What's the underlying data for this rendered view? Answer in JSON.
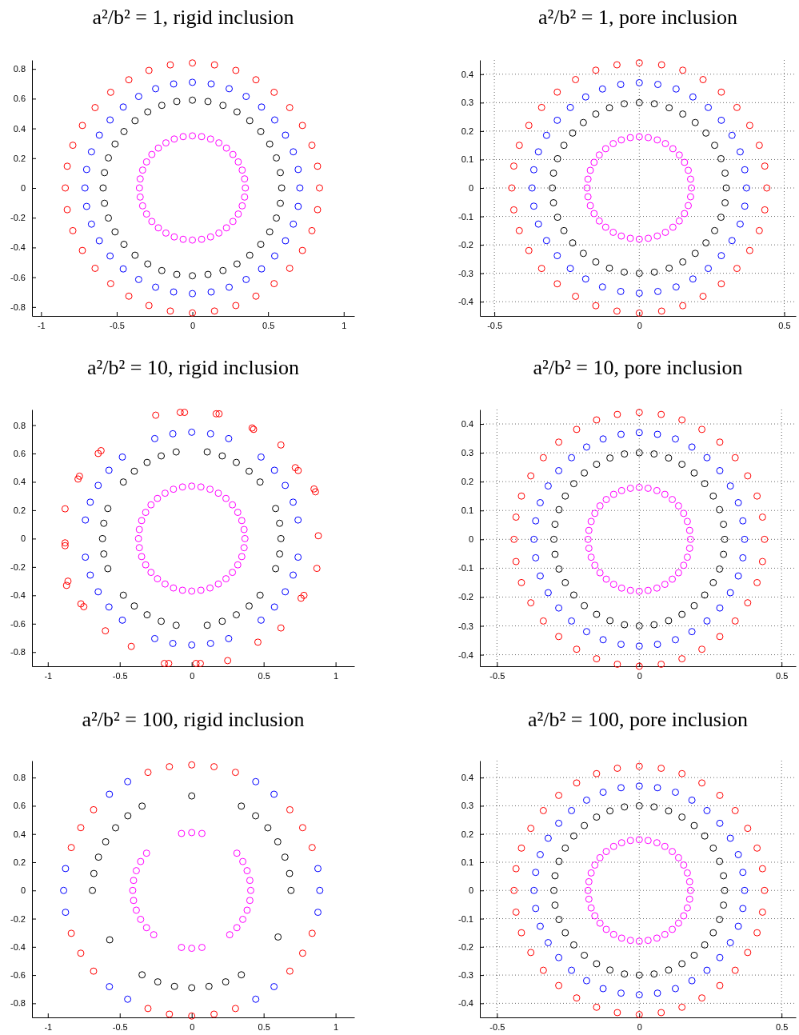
{
  "chart_data": [
    {
      "type": "scatter",
      "title": "a²/b² = 1, rigid inclusion",
      "marker": "circle",
      "grid": false,
      "xlim": [
        -1.06,
        1.07
      ],
      "ylim": [
        -0.86,
        0.86
      ],
      "xticks": [
        -1,
        -0.5,
        0,
        0.5,
        1
      ],
      "yticks": [
        -0.8,
        -0.6,
        -0.4,
        -0.2,
        0,
        0.2,
        0.4,
        0.6,
        0.8
      ],
      "series": [
        {
          "color": "#ff0000",
          "x": [
            0.84,
            0.827,
            0.79,
            0.727,
            0.643,
            0.54,
            0.42,
            0.287,
            0.146,
            0,
            -0.146,
            -0.287,
            -0.42,
            -0.54,
            -0.643,
            -0.727,
            -0.79,
            -0.827,
            -0.84,
            -0.827,
            -0.79,
            -0.727,
            -0.643,
            -0.54,
            -0.42,
            -0.287,
            -0.146,
            0,
            0.146,
            0.287,
            0.42,
            0.54,
            0.643,
            0.727,
            0.79,
            0.827
          ],
          "values": [
            0,
            0.146,
            0.287,
            0.42,
            0.54,
            0.643,
            0.727,
            0.79,
            0.827,
            0.84,
            0.827,
            0.79,
            0.727,
            0.643,
            0.54,
            0.42,
            0.287,
            0.146,
            0,
            -0.146,
            -0.287,
            -0.42,
            -0.54,
            -0.643,
            -0.727,
            -0.79,
            -0.827,
            -0.84,
            -0.827,
            -0.79,
            -0.727,
            -0.643,
            -0.54,
            -0.42,
            -0.287,
            -0.146
          ]
        },
        {
          "color": "#0000ff",
          "x": [
            0.71,
            0.699,
            0.667,
            0.615,
            0.544,
            0.457,
            0.355,
            0.243,
            0.124,
            0,
            -0.124,
            -0.243,
            -0.355,
            -0.457,
            -0.544,
            -0.615,
            -0.667,
            -0.699,
            -0.71,
            -0.699,
            -0.667,
            -0.615,
            -0.544,
            -0.457,
            -0.355,
            -0.243,
            -0.124,
            0,
            0.124,
            0.243,
            0.355,
            0.457,
            0.544,
            0.615,
            0.667,
            0.699
          ],
          "values": [
            0,
            0.124,
            0.243,
            0.355,
            0.457,
            0.544,
            0.615,
            0.667,
            0.699,
            0.71,
            0.699,
            0.667,
            0.615,
            0.544,
            0.457,
            0.355,
            0.243,
            0.124,
            0,
            -0.124,
            -0.243,
            -0.355,
            -0.457,
            -0.544,
            -0.615,
            -0.667,
            -0.699,
            -0.71,
            -0.699,
            -0.667,
            -0.615,
            -0.544,
            -0.457,
            -0.355,
            -0.243,
            -0.124
          ]
        },
        {
          "color": "#000000",
          "x": [
            0.59,
            0.581,
            0.555,
            0.511,
            0.452,
            0.379,
            0.295,
            0.202,
            0.103,
            0,
            -0.103,
            -0.202,
            -0.295,
            -0.379,
            -0.452,
            -0.511,
            -0.555,
            -0.581,
            -0.59,
            -0.581,
            -0.555,
            -0.511,
            -0.452,
            -0.379,
            -0.295,
            -0.202,
            -0.103,
            0,
            0.103,
            0.202,
            0.295,
            0.379,
            0.452,
            0.511,
            0.555,
            0.581
          ],
          "values": [
            0,
            0.103,
            0.202,
            0.295,
            0.379,
            0.452,
            0.511,
            0.555,
            0.581,
            0.59,
            0.581,
            0.555,
            0.511,
            0.452,
            0.379,
            0.295,
            0.202,
            0.103,
            0,
            -0.103,
            -0.202,
            -0.295,
            -0.379,
            -0.452,
            -0.511,
            -0.555,
            -0.581,
            -0.59,
            -0.581,
            -0.555,
            -0.511,
            -0.452,
            -0.379,
            -0.295,
            -0.202,
            -0.103
          ]
        },
        {
          "color": "#ff00ff",
          "x": [
            0.35,
            0.345,
            0.329,
            0.303,
            0.268,
            0.225,
            0.175,
            0.12,
            0.061,
            0,
            -0.061,
            -0.12,
            -0.175,
            -0.225,
            -0.268,
            -0.303,
            -0.329,
            -0.345,
            -0.35,
            -0.345,
            -0.329,
            -0.303,
            -0.268,
            -0.225,
            -0.175,
            -0.12,
            -0.061,
            0,
            0.061,
            0.12,
            0.175,
            0.225,
            0.268,
            0.303,
            0.329,
            0.345
          ],
          "values": [
            0,
            0.061,
            0.12,
            0.175,
            0.225,
            0.268,
            0.303,
            0.329,
            0.345,
            0.35,
            0.345,
            0.329,
            0.303,
            0.268,
            0.225,
            0.175,
            0.12,
            0.061,
            0,
            -0.061,
            -0.12,
            -0.175,
            -0.225,
            -0.268,
            -0.303,
            -0.329,
            -0.345,
            -0.35,
            -0.345,
            -0.329,
            -0.303,
            -0.268,
            -0.225,
            -0.175,
            -0.12,
            -0.061
          ]
        }
      ]
    },
    {
      "type": "scatter",
      "title": "a²/b² = 1, pore inclusion",
      "marker": "circle",
      "grid": true,
      "xlim": [
        -0.55,
        0.54
      ],
      "ylim": [
        -0.45,
        0.45
      ],
      "xticks": [
        -0.5,
        0,
        0.5
      ],
      "yticks": [
        -0.4,
        -0.3,
        -0.2,
        -0.1,
        0,
        0.1,
        0.2,
        0.3,
        0.4
      ],
      "series": [
        {
          "color": "#ff0000",
          "x": [
            0.44,
            0.433,
            0.414,
            0.381,
            0.337,
            0.283,
            0.22,
            0.15,
            0.077,
            0,
            -0.077,
            -0.15,
            -0.22,
            -0.283,
            -0.337,
            -0.381,
            -0.414,
            -0.433,
            -0.44,
            -0.433,
            -0.414,
            -0.381,
            -0.337,
            -0.283,
            -0.22,
            -0.15,
            -0.077,
            0,
            0.077,
            0.15,
            0.22,
            0.283,
            0.337,
            0.381,
            0.414,
            0.433
          ],
          "values": [
            0,
            0.077,
            0.15,
            0.22,
            0.283,
            0.337,
            0.381,
            0.414,
            0.433,
            0.44,
            0.433,
            0.414,
            0.381,
            0.337,
            0.283,
            0.22,
            0.15,
            0.077,
            0,
            -0.077,
            -0.15,
            -0.22,
            -0.283,
            -0.337,
            -0.381,
            -0.414,
            -0.433,
            -0.44,
            -0.433,
            -0.414,
            -0.381,
            -0.337,
            -0.283,
            -0.22,
            -0.15,
            -0.077
          ]
        },
        {
          "color": "#0000ff",
          "x": [
            0.37,
            0.364,
            0.348,
            0.32,
            0.283,
            0.238,
            0.185,
            0.127,
            0.064,
            0,
            -0.064,
            -0.127,
            -0.185,
            -0.238,
            -0.283,
            -0.32,
            -0.348,
            -0.364,
            -0.37,
            -0.364,
            -0.348,
            -0.32,
            -0.283,
            -0.238,
            -0.185,
            -0.127,
            -0.064,
            0,
            0.064,
            0.127,
            0.185,
            0.238,
            0.283,
            0.32,
            0.348,
            0.364
          ],
          "values": [
            0,
            0.064,
            0.127,
            0.185,
            0.238,
            0.283,
            0.32,
            0.348,
            0.364,
            0.37,
            0.364,
            0.348,
            0.32,
            0.283,
            0.238,
            0.185,
            0.127,
            0.064,
            0,
            -0.064,
            -0.127,
            -0.185,
            -0.238,
            -0.283,
            -0.32,
            -0.348,
            -0.364,
            -0.37,
            -0.364,
            -0.348,
            -0.32,
            -0.283,
            -0.238,
            -0.185,
            -0.127,
            -0.064
          ]
        },
        {
          "color": "#000000",
          "x": [
            0.3,
            0.296,
            0.282,
            0.26,
            0.23,
            0.193,
            0.15,
            0.103,
            0.052,
            0,
            -0.052,
            -0.103,
            -0.15,
            -0.193,
            -0.23,
            -0.26,
            -0.282,
            -0.296,
            -0.3,
            -0.296,
            -0.282,
            -0.26,
            -0.23,
            -0.193,
            -0.15,
            -0.103,
            -0.052,
            0,
            0.052,
            0.103,
            0.15,
            0.193,
            0.23,
            0.26,
            0.282,
            0.296
          ],
          "values": [
            0,
            0.052,
            0.103,
            0.15,
            0.193,
            0.23,
            0.26,
            0.282,
            0.296,
            0.3,
            0.296,
            0.282,
            0.26,
            0.23,
            0.193,
            0.15,
            0.103,
            0.052,
            0,
            -0.052,
            -0.103,
            -0.15,
            -0.193,
            -0.23,
            -0.26,
            -0.282,
            -0.296,
            -0.3,
            -0.296,
            -0.282,
            -0.26,
            -0.23,
            -0.193,
            -0.15,
            -0.103,
            -0.052
          ]
        },
        {
          "color": "#ff00ff",
          "x": [
            0.18,
            0.177,
            0.169,
            0.156,
            0.138,
            0.116,
            0.09,
            0.062,
            0.031,
            0,
            -0.031,
            -0.062,
            -0.09,
            -0.116,
            -0.138,
            -0.156,
            -0.169,
            -0.177,
            -0.18,
            -0.177,
            -0.169,
            -0.156,
            -0.138,
            -0.116,
            -0.09,
            -0.062,
            -0.031,
            0,
            0.031,
            0.062,
            0.09,
            0.116,
            0.138,
            0.156,
            0.169,
            0.177
          ],
          "values": [
            0,
            0.031,
            0.062,
            0.09,
            0.116,
            0.138,
            0.156,
            0.169,
            0.177,
            0.18,
            0.177,
            0.169,
            0.156,
            0.138,
            0.116,
            0.09,
            0.062,
            0.031,
            0,
            -0.031,
            -0.062,
            -0.09,
            -0.116,
            -0.138,
            -0.156,
            -0.169,
            -0.177,
            -0.18,
            -0.177,
            -0.169,
            -0.156,
            -0.138,
            -0.116,
            -0.09,
            -0.062,
            -0.031
          ]
        }
      ]
    },
    {
      "type": "scatter",
      "title": "a²/b² = 10, rigid inclusion",
      "marker": "circle",
      "grid": false,
      "xlim": [
        -1.11,
        1.13
      ],
      "ylim": [
        -0.9,
        0.91
      ],
      "xticks": [
        -1,
        -0.5,
        0,
        0.5,
        1
      ],
      "yticks": [
        -0.8,
        -0.6,
        -0.4,
        -0.2,
        0,
        0.2,
        0.4,
        0.6,
        0.8
      ],
      "series": [
        {
          "color": "#ff0000",
          "x": [
            -0.08,
            -0.05,
            0.17,
            0.19,
            -0.25,
            0.42,
            0.43,
            0.62,
            0.72,
            0.74,
            0.85,
            0.86,
            0.88,
            0.87,
            0.78,
            0.76,
            0.62,
            0.46,
            0.25,
            0.06,
            0.03,
            -0.16,
            -0.19,
            -0.42,
            -0.6,
            -0.75,
            -0.77,
            -0.86,
            -0.87,
            -0.88,
            -0.88,
            -0.88,
            -0.79,
            -0.78,
            -0.65,
            -0.63
          ],
          "values": [
            0.89,
            0.89,
            0.88,
            0.88,
            0.87,
            0.78,
            0.77,
            0.66,
            0.5,
            0.48,
            0.35,
            0.33,
            0.02,
            -0.21,
            -0.4,
            -0.42,
            -0.63,
            -0.73,
            -0.86,
            -0.88,
            -0.88,
            -0.88,
            -0.88,
            -0.76,
            -0.65,
            -0.48,
            -0.46,
            -0.3,
            -0.33,
            -0.03,
            -0.05,
            0.21,
            0.42,
            0.44,
            0.6,
            0.62
          ]
        },
        {
          "color": "#0000ff",
          "x": [
            0.739,
            0.705,
            0.65,
            0.575,
            0.482,
            0.257,
            0.131,
            0,
            -0.131,
            -0.257,
            -0.482,
            -0.575,
            -0.65,
            -0.705,
            -0.739,
            -0.739,
            -0.705,
            -0.65,
            -0.575,
            -0.482,
            -0.257,
            -0.131,
            0,
            0.131,
            0.257,
            0.482,
            0.575,
            0.65,
            0.705,
            0.739
          ],
          "values": [
            0.131,
            0.257,
            0.375,
            0.482,
            0.575,
            0.705,
            0.739,
            0.75,
            0.739,
            0.705,
            0.575,
            0.482,
            0.375,
            0.257,
            0.131,
            -0.131,
            -0.257,
            -0.375,
            -0.482,
            -0.575,
            -0.705,
            -0.739,
            -0.75,
            -0.739,
            -0.705,
            -0.575,
            -0.482,
            -0.375,
            -0.257,
            -0.131
          ]
        },
        {
          "color": "#000000",
          "x": [
            0.62,
            0.611,
            0.583,
            0.475,
            0.399,
            0.31,
            0.212,
            0.108,
            -0.108,
            -0.212,
            -0.31,
            -0.399,
            -0.475,
            -0.583,
            -0.611,
            -0.62,
            -0.611,
            -0.583,
            -0.475,
            -0.399,
            -0.31,
            -0.212,
            -0.108,
            0.108,
            0.212,
            0.31,
            0.399,
            0.475,
            0.583,
            0.611
          ],
          "values": [
            0,
            0.108,
            0.212,
            0.399,
            0.475,
            0.537,
            0.583,
            0.611,
            0.611,
            0.583,
            0.537,
            0.475,
            0.399,
            0.212,
            0.108,
            0,
            -0.108,
            -0.212,
            -0.399,
            -0.475,
            -0.537,
            -0.583,
            -0.611,
            -0.611,
            -0.583,
            -0.537,
            -0.475,
            -0.399,
            -0.212,
            -0.108
          ]
        },
        {
          "color": "#ff00ff",
          "x": [
            0.37,
            0.364,
            0.348,
            0.32,
            0.283,
            0.238,
            0.185,
            0.127,
            0.064,
            0,
            -0.064,
            -0.127,
            -0.185,
            -0.238,
            -0.283,
            -0.32,
            -0.348,
            -0.364,
            -0.37,
            -0.364,
            -0.348,
            -0.32,
            -0.283,
            -0.238,
            -0.185,
            -0.127,
            -0.064,
            0,
            0.064,
            0.127,
            0.185,
            0.238,
            0.283,
            0.32,
            0.348,
            0.364
          ],
          "values": [
            0,
            0.064,
            0.127,
            0.185,
            0.238,
            0.283,
            0.32,
            0.348,
            0.364,
            0.37,
            0.364,
            0.348,
            0.32,
            0.283,
            0.238,
            0.185,
            0.127,
            0.064,
            0,
            -0.064,
            -0.127,
            -0.185,
            -0.238,
            -0.283,
            -0.32,
            -0.348,
            -0.364,
            -0.37,
            -0.364,
            -0.348,
            -0.32,
            -0.283,
            -0.238,
            -0.185,
            -0.127,
            -0.064
          ]
        }
      ]
    },
    {
      "type": "scatter",
      "title": "a²/b² = 10, pore inclusion",
      "marker": "circle",
      "grid": true,
      "xlim": [
        -0.56,
        0.55
      ],
      "ylim": [
        -0.44,
        0.45
      ],
      "xticks": [
        -0.5,
        0,
        0.5
      ],
      "yticks": [
        -0.4,
        -0.3,
        -0.2,
        -0.1,
        0,
        0.1,
        0.2,
        0.3,
        0.4
      ],
      "series": [
        {
          "color": "#ff0000",
          "x": [
            0.44,
            0.433,
            0.414,
            0.381,
            0.337,
            0.283,
            0.22,
            0.15,
            0.077,
            0,
            -0.077,
            -0.15,
            -0.22,
            -0.283,
            -0.337,
            -0.381,
            -0.414,
            -0.433,
            -0.44,
            -0.433,
            -0.414,
            -0.381,
            -0.337,
            -0.283,
            -0.22,
            -0.15,
            -0.077,
            0,
            0.077,
            0.15,
            0.22,
            0.283,
            0.337,
            0.381,
            0.414,
            0.433
          ],
          "values": [
            0,
            0.077,
            0.15,
            0.22,
            0.283,
            0.337,
            0.381,
            0.414,
            0.433,
            0.44,
            0.433,
            0.414,
            0.381,
            0.337,
            0.283,
            0.22,
            0.15,
            0.077,
            0,
            -0.077,
            -0.15,
            -0.22,
            -0.283,
            -0.337,
            -0.381,
            -0.414,
            -0.433,
            -0.44,
            -0.433,
            -0.414,
            -0.381,
            -0.337,
            -0.283,
            -0.22,
            -0.15,
            -0.077
          ]
        },
        {
          "color": "#0000ff",
          "x": [
            0.37,
            0.364,
            0.348,
            0.32,
            0.283,
            0.238,
            0.185,
            0.127,
            0.064,
            0,
            -0.064,
            -0.127,
            -0.185,
            -0.238,
            -0.283,
            -0.32,
            -0.348,
            -0.364,
            -0.37,
            -0.364,
            -0.348,
            -0.32,
            -0.283,
            -0.238,
            -0.185,
            -0.127,
            -0.064,
            0,
            0.064,
            0.127,
            0.185,
            0.238,
            0.283,
            0.32,
            0.348,
            0.364
          ],
          "values": [
            0,
            0.064,
            0.127,
            0.185,
            0.238,
            0.283,
            0.32,
            0.348,
            0.364,
            0.37,
            0.364,
            0.348,
            0.32,
            0.283,
            0.238,
            0.185,
            0.127,
            0.064,
            0,
            -0.064,
            -0.127,
            -0.185,
            -0.238,
            -0.283,
            -0.32,
            -0.348,
            -0.364,
            -0.37,
            -0.364,
            -0.348,
            -0.32,
            -0.283,
            -0.238,
            -0.185,
            -0.127,
            -0.064
          ]
        },
        {
          "color": "#000000",
          "x": [
            0.3,
            0.296,
            0.282,
            0.26,
            0.23,
            0.193,
            0.15,
            0.103,
            0.052,
            0,
            -0.052,
            -0.103,
            -0.15,
            -0.193,
            -0.23,
            -0.26,
            -0.282,
            -0.296,
            -0.3,
            -0.296,
            -0.282,
            -0.26,
            -0.23,
            -0.193,
            -0.15,
            -0.103,
            -0.052,
            0,
            0.052,
            0.103,
            0.15,
            0.193,
            0.23,
            0.26,
            0.282,
            0.296
          ],
          "values": [
            0,
            0.052,
            0.103,
            0.15,
            0.193,
            0.23,
            0.26,
            0.282,
            0.296,
            0.3,
            0.296,
            0.282,
            0.26,
            0.23,
            0.193,
            0.15,
            0.103,
            0.052,
            0,
            -0.052,
            -0.103,
            -0.15,
            -0.193,
            -0.23,
            -0.26,
            -0.282,
            -0.296,
            -0.3,
            -0.296,
            -0.282,
            -0.26,
            -0.23,
            -0.193,
            -0.15,
            -0.103,
            -0.052
          ]
        },
        {
          "color": "#ff00ff",
          "x": [
            0.18,
            0.177,
            0.169,
            0.156,
            0.138,
            0.116,
            0.09,
            0.062,
            0.031,
            0,
            -0.031,
            -0.062,
            -0.09,
            -0.116,
            -0.138,
            -0.156,
            -0.169,
            -0.177,
            -0.18,
            -0.177,
            -0.169,
            -0.156,
            -0.138,
            -0.116,
            -0.09,
            -0.062,
            -0.031,
            0,
            0.031,
            0.062,
            0.09,
            0.116,
            0.138,
            0.156,
            0.169,
            0.177
          ],
          "values": [
            0,
            0.031,
            0.062,
            0.09,
            0.116,
            0.138,
            0.156,
            0.169,
            0.177,
            0.18,
            0.177,
            0.169,
            0.156,
            0.138,
            0.116,
            0.09,
            0.062,
            0.031,
            0,
            -0.031,
            -0.062,
            -0.09,
            -0.116,
            -0.138,
            -0.156,
            -0.169,
            -0.177,
            -0.18,
            -0.177,
            -0.169,
            -0.156,
            -0.138,
            -0.116,
            -0.09,
            -0.062,
            -0.031
          ]
        }
      ]
    },
    {
      "type": "scatter",
      "title": "a²/b² = 100, rigid inclusion",
      "marker": "circle",
      "grid": false,
      "xlim": [
        -1.11,
        1.13
      ],
      "ylim": [
        -0.9,
        0.92
      ],
      "xticks": [
        -1,
        -0.5,
        0,
        0.5,
        1
      ],
      "yticks": [
        -0.8,
        -0.6,
        -0.4,
        -0.2,
        0,
        0.2,
        0.4,
        0.6,
        0.8
      ],
      "series": [
        {
          "color": "#ff0000",
          "x": [
            0.837,
            0.771,
            0.682,
            0.304,
            0.155,
            0,
            -0.155,
            -0.304,
            -0.682,
            -0.771,
            -0.837,
            -0.837,
            -0.771,
            -0.682,
            -0.304,
            -0.155,
            0,
            0.155,
            0.304,
            0.682,
            0.771,
            0.837
          ],
          "values": [
            0.304,
            0.445,
            0.572,
            0.837,
            0.877,
            0.89,
            0.877,
            0.837,
            0.572,
            0.445,
            0.304,
            -0.304,
            -0.445,
            -0.572,
            -0.837,
            -0.877,
            -0.89,
            -0.877,
            -0.837,
            -0.572,
            -0.445,
            -0.304
          ]
        },
        {
          "color": "#0000ff",
          "x": [
            0.89,
            0.877,
            0.572,
            0.445,
            -0.445,
            -0.572,
            -0.877,
            -0.89,
            -0.877,
            -0.572,
            -0.445,
            0.445,
            0.572,
            0.877
          ],
          "values": [
            0,
            0.155,
            0.682,
            0.771,
            0.771,
            0.682,
            0.155,
            0,
            -0.155,
            -0.682,
            -0.771,
            -0.771,
            -0.682,
            -0.155
          ]
        },
        {
          "color": "#000000",
          "x": [
            0.69,
            0.68,
            0.648,
            0.598,
            0.529,
            0.444,
            0.345,
            -0.345,
            -0.444,
            -0.529,
            -0.598,
            -0.648,
            -0.68,
            -0.69,
            -0.345,
            -0.236,
            -0.12,
            0,
            0.12,
            0.236,
            0.345,
            0,
            -0.57,
            0.6
          ],
          "values": [
            0,
            0.12,
            0.236,
            0.345,
            0.444,
            0.529,
            0.598,
            0.598,
            0.529,
            0.444,
            0.345,
            0.236,
            0.12,
            0,
            -0.598,
            -0.648,
            -0.68,
            -0.69,
            -0.68,
            -0.648,
            -0.598,
            0.67,
            -0.35,
            -0.33
          ]
        },
        {
          "color": "#ff00ff",
          "x": [
            0.41,
            0.404,
            0.385,
            0.355,
            0.314,
            0.071,
            0,
            -0.071,
            -0.314,
            -0.355,
            -0.385,
            -0.404,
            -0.41,
            -0.404,
            -0.385,
            -0.355,
            -0.314,
            -0.264,
            -0.071,
            0,
            0.071,
            0.264,
            0.314,
            0.355,
            0.385,
            0.404
          ],
          "values": [
            0,
            0.071,
            0.14,
            0.205,
            0.264,
            0.404,
            0.41,
            0.404,
            0.264,
            0.205,
            0.14,
            0.071,
            0,
            -0.071,
            -0.14,
            -0.205,
            -0.264,
            -0.314,
            -0.404,
            -0.41,
            -0.404,
            -0.314,
            -0.264,
            -0.205,
            -0.14,
            -0.071
          ]
        }
      ]
    },
    {
      "type": "scatter",
      "title": "a²/b² = 100, pore inclusion",
      "marker": "circle",
      "grid": true,
      "xlim": [
        -0.56,
        0.55
      ],
      "ylim": [
        -0.45,
        0.46
      ],
      "xticks": [
        -0.5,
        0,
        0.5
      ],
      "yticks": [
        -0.4,
        -0.3,
        -0.2,
        -0.1,
        0,
        0.1,
        0.2,
        0.3,
        0.4
      ],
      "series": [
        {
          "color": "#ff0000",
          "x": [
            0.44,
            0.433,
            0.414,
            0.381,
            0.337,
            0.283,
            0.22,
            0.15,
            0.077,
            0,
            -0.077,
            -0.15,
            -0.22,
            -0.283,
            -0.337,
            -0.381,
            -0.414,
            -0.433,
            -0.44,
            -0.433,
            -0.414,
            -0.381,
            -0.337,
            -0.283,
            -0.22,
            -0.15,
            -0.077,
            0,
            0.077,
            0.15,
            0.22,
            0.283,
            0.337,
            0.381,
            0.414,
            0.433
          ],
          "values": [
            0,
            0.077,
            0.15,
            0.22,
            0.283,
            0.337,
            0.381,
            0.414,
            0.433,
            0.44,
            0.433,
            0.414,
            0.381,
            0.337,
            0.283,
            0.22,
            0.15,
            0.077,
            0,
            -0.077,
            -0.15,
            -0.22,
            -0.283,
            -0.337,
            -0.381,
            -0.414,
            -0.433,
            -0.44,
            -0.433,
            -0.414,
            -0.381,
            -0.337,
            -0.283,
            -0.22,
            -0.15,
            -0.077
          ]
        },
        {
          "color": "#0000ff",
          "x": [
            0.37,
            0.364,
            0.348,
            0.32,
            0.283,
            0.238,
            0.185,
            0.127,
            0.064,
            0,
            -0.064,
            -0.127,
            -0.185,
            -0.238,
            -0.283,
            -0.32,
            -0.348,
            -0.364,
            -0.37,
            -0.364,
            -0.348,
            -0.32,
            -0.283,
            -0.238,
            -0.185,
            -0.127,
            -0.064,
            0,
            0.064,
            0.127,
            0.185,
            0.238,
            0.283,
            0.32,
            0.348,
            0.364
          ],
          "values": [
            0,
            0.064,
            0.127,
            0.185,
            0.238,
            0.283,
            0.32,
            0.348,
            0.364,
            0.37,
            0.364,
            0.348,
            0.32,
            0.283,
            0.238,
            0.185,
            0.127,
            0.064,
            0,
            -0.064,
            -0.127,
            -0.185,
            -0.238,
            -0.283,
            -0.32,
            -0.348,
            -0.364,
            -0.37,
            -0.364,
            -0.348,
            -0.32,
            -0.283,
            -0.238,
            -0.185,
            -0.127,
            -0.064
          ]
        },
        {
          "color": "#000000",
          "x": [
            0.3,
            0.296,
            0.282,
            0.26,
            0.23,
            0.193,
            0.15,
            0.103,
            0.052,
            0,
            -0.052,
            -0.103,
            -0.15,
            -0.193,
            -0.23,
            -0.26,
            -0.282,
            -0.296,
            -0.3,
            -0.296,
            -0.282,
            -0.26,
            -0.23,
            -0.193,
            -0.15,
            -0.103,
            -0.052,
            0,
            0.052,
            0.103,
            0.15,
            0.193,
            0.23,
            0.26,
            0.282,
            0.296
          ],
          "values": [
            0,
            0.052,
            0.103,
            0.15,
            0.193,
            0.23,
            0.26,
            0.282,
            0.296,
            0.3,
            0.296,
            0.282,
            0.26,
            0.23,
            0.193,
            0.15,
            0.103,
            0.052,
            0,
            -0.052,
            -0.103,
            -0.15,
            -0.193,
            -0.23,
            -0.26,
            -0.282,
            -0.296,
            -0.3,
            -0.296,
            -0.282,
            -0.26,
            -0.23,
            -0.193,
            -0.15,
            -0.103,
            -0.052
          ]
        },
        {
          "color": "#ff00ff",
          "x": [
            0.18,
            0.177,
            0.169,
            0.156,
            0.138,
            0.116,
            0.09,
            0.062,
            0.031,
            0,
            -0.031,
            -0.062,
            -0.09,
            -0.116,
            -0.138,
            -0.156,
            -0.169,
            -0.177,
            -0.18,
            -0.177,
            -0.169,
            -0.156,
            -0.138,
            -0.116,
            -0.09,
            -0.062,
            -0.031,
            0,
            0.031,
            0.062,
            0.09,
            0.116,
            0.138,
            0.156,
            0.169,
            0.177
          ],
          "values": [
            0,
            0.031,
            0.062,
            0.09,
            0.116,
            0.138,
            0.156,
            0.169,
            0.177,
            0.18,
            0.177,
            0.169,
            0.156,
            0.138,
            0.116,
            0.09,
            0.062,
            0.031,
            0,
            -0.031,
            -0.062,
            -0.09,
            -0.116,
            -0.138,
            -0.156,
            -0.169,
            -0.177,
            -0.18,
            -0.177,
            -0.169,
            -0.156,
            -0.138,
            -0.116,
            -0.09,
            -0.062,
            -0.031
          ]
        }
      ]
    }
  ]
}
